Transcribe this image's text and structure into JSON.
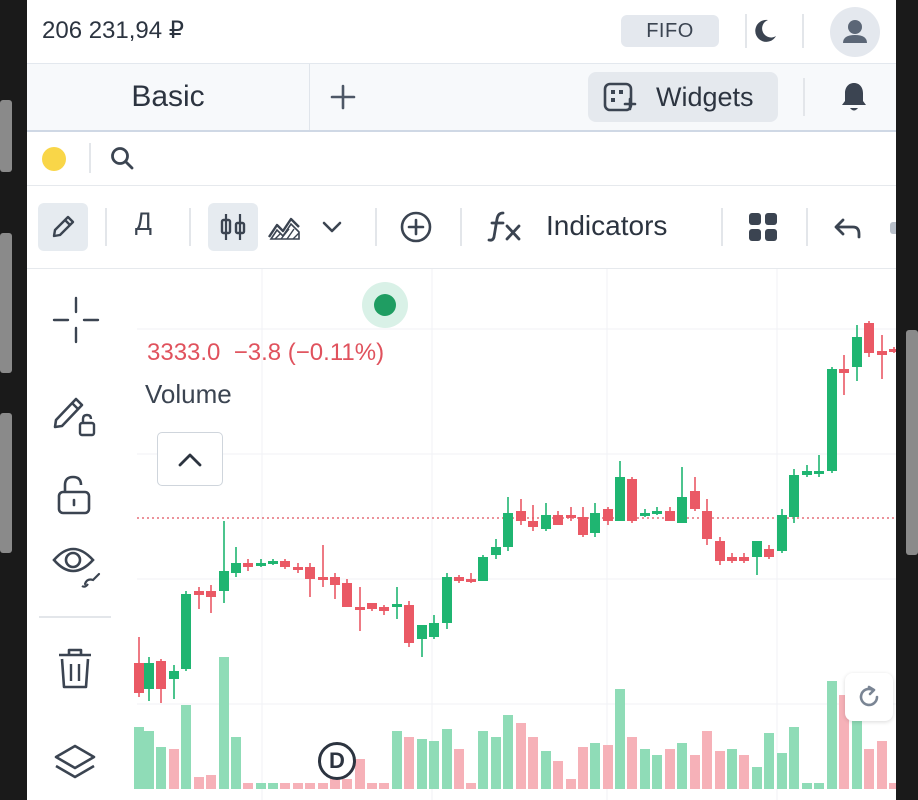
{
  "header": {
    "balance": "206 231,94 ₽",
    "fifo_label": "FIFO",
    "icons": [
      "moon-icon",
      "avatar-icon"
    ]
  },
  "tabs": {
    "active_tab": "Basic",
    "widgets_label": "Widgets",
    "icons": [
      "plus-icon",
      "widgets-icon",
      "bell-icon"
    ]
  },
  "search": {
    "icons": [
      "status-dot-yellow",
      "search-icon"
    ]
  },
  "toolbar": {
    "draw_letter": "Д",
    "indicators_label": "Indicators",
    "icons": [
      "pencil-icon",
      "candlestick-icon",
      "area-chart-icon",
      "chevron-down-icon",
      "plus-circle-icon",
      "fx-icon",
      "layout-grid-icon",
      "undo-icon"
    ]
  },
  "chart": {
    "legend_price": "3333.0",
    "legend_change": "−3.8 (−0.11%)",
    "volume_label": "Volume",
    "interval_badge": "D",
    "colors": {
      "up": "#1fb571",
      "down": "#ea5965",
      "up_volume": "#8fdcb7",
      "down_volume": "#f6b1b8",
      "price_line": "#e0525d"
    },
    "left_tools": [
      "crosshair-icon",
      "draw-lock-icon",
      "unlock-icon",
      "eye-icon",
      "trash-icon",
      "layers-icon"
    ]
  }
}
